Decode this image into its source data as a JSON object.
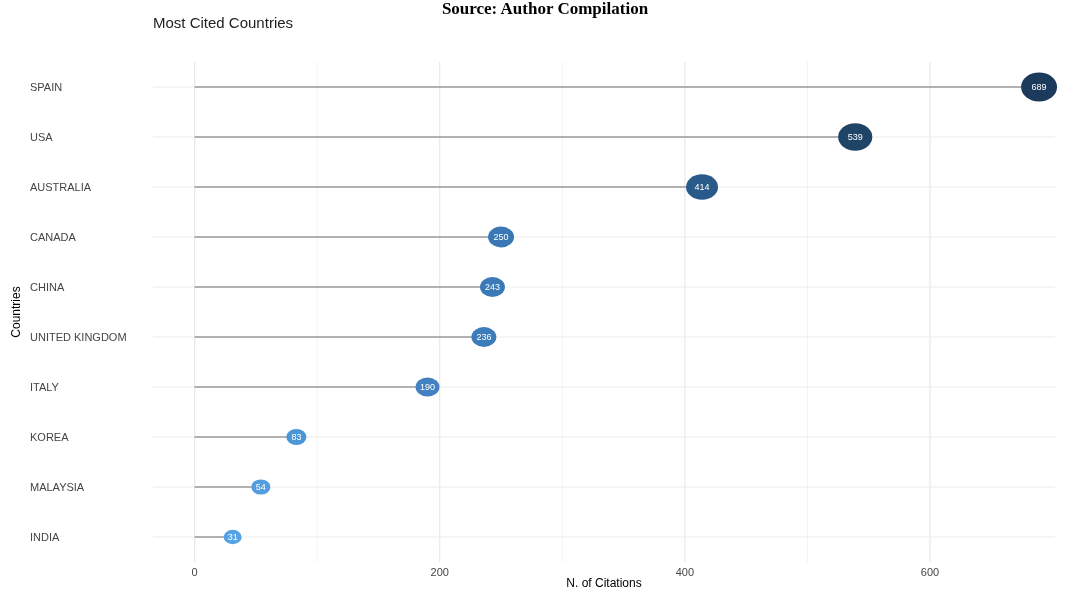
{
  "chart_data": {
    "type": "lollipop",
    "orientation": "horizontal",
    "title": "Most Cited Countries",
    "xlabel": "N. of Citations",
    "ylabel": "Countries",
    "annotations": [
      "Source: Author Compilation"
    ],
    "categories": [
      "SPAIN",
      "USA",
      "AUSTRALIA",
      "CANADA",
      "CHINA",
      "UNITED KINGDOM",
      "ITALY",
      "KOREA",
      "MALAYSIA",
      "INDIA"
    ],
    "values": [
      689,
      539,
      414,
      250,
      243,
      236,
      190,
      83,
      54,
      31
    ],
    "colors": [
      "#1b3a5c",
      "#1f4468",
      "#2a5a8a",
      "#3a78b5",
      "#3b7ab8",
      "#3c7cba",
      "#4282c2",
      "#4c96d8",
      "#509ddf",
      "#54a3e6"
    ],
    "sizes": [
      1,
      0.9,
      0.79,
      0.52,
      0.48,
      0.48,
      0.44,
      0.31,
      0.28,
      0.25
    ],
    "xlim": [
      -34,
      702
    ],
    "xticks": [
      0,
      200,
      400,
      600
    ],
    "grid": true,
    "marker": "circle",
    "data_labels": true
  }
}
